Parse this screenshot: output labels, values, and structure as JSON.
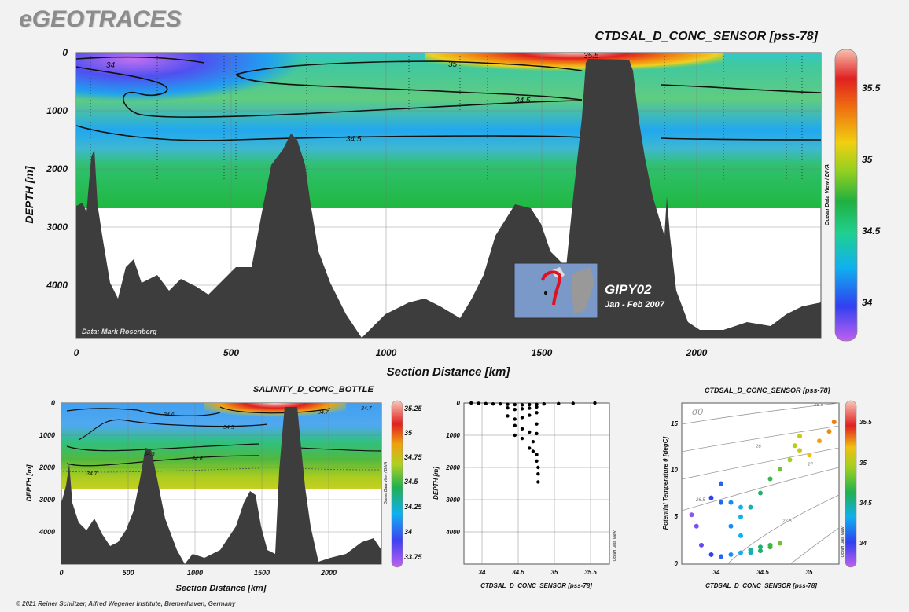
{
  "brand": "eGEOTRACES",
  "copyright": "© 2021 Reiner Schlitzer, Alfred Wegener Institute, Bremerhaven, Germany",
  "colorscale": [
    "#b060e0",
    "#3030e8",
    "#20a0f0",
    "#30d090",
    "#20b040",
    "#a0d020",
    "#f0c010",
    "#f07010",
    "#e02020",
    "#f8c8b8"
  ],
  "main": {
    "title": "CTDSAL_D_CONC_SENSOR [pss-78]",
    "ylabel": "DEPTH [m]",
    "xlabel": "Section Distance [km]",
    "credit": "Data: Mark Rosenberg",
    "odv": "Ocean Data View / DIVA",
    "cruise": "GIPY02",
    "dates": "Jan - Feb 2007",
    "contours": [
      "34",
      "35",
      "35.5",
      "34.5",
      "34.5"
    ]
  },
  "bottle": {
    "title": "SALINITY_D_CONC_BOTTLE",
    "ylabel": "DEPTH [m]",
    "xlabel": "Section Distance [km]",
    "odv": "Ocean Data View / DIVA",
    "contours": [
      "34.6",
      "34.7",
      "34.5",
      "34.6",
      "34.5",
      "34.7",
      "34.7"
    ]
  },
  "profile": {
    "ylabel": "DEPTH [m]",
    "xlabel": "CTDSAL_D_CONC_SENSOR [pss-78]",
    "odv": "Ocean Data View"
  },
  "ts": {
    "title": "CTDSAL_D_CONC_SENSOR [pss-78]",
    "ylabel": "Potential Temperature θ [degC]",
    "xlabel": "CTDSAL_D_CONC_SENSOR [pss-78]",
    "sigma": "σ0",
    "odv": "Ocean Data View",
    "isopycnals": [
      "26",
      "26.5",
      "27",
      "27.5",
      "25.5"
    ]
  },
  "chart_data": [
    {
      "type": "heatmap",
      "title": "CTDSAL_D_CONC_SENSOR [pss-78]",
      "xlabel": "Section Distance [km]",
      "ylabel": "DEPTH [m]",
      "xlim": [
        0,
        2400
      ],
      "ylim": [
        0,
        5000
      ],
      "xticks": [
        0,
        500,
        1000,
        1500,
        2000
      ],
      "yticks": [
        0,
        1000,
        2000,
        3000,
        4000
      ],
      "colorbar": {
        "ticks": [
          34,
          34.5,
          35,
          35.5
        ],
        "range": [
          33.7,
          35.7
        ]
      },
      "bathymetry": {
        "x": [
          0,
          40,
          60,
          80,
          100,
          150,
          200,
          300,
          400,
          500,
          600,
          640,
          680,
          700,
          720,
          760,
          800,
          900,
          950,
          1000,
          1100,
          1200,
          1300,
          1350,
          1400,
          1450,
          1500,
          1550,
          1600,
          1620,
          1650,
          1700,
          1750,
          1800,
          1850,
          1900,
          1950,
          2000,
          2100,
          2200,
          2300,
          2400
        ],
        "y": [
          2600,
          2700,
          1700,
          2800,
          3900,
          4000,
          3500,
          4200,
          3900,
          3800,
          3500,
          2000,
          1500,
          1400,
          1800,
          3000,
          4500,
          4900,
          4600,
          4300,
          4500,
          4600,
          3800,
          3300,
          2800,
          2700,
          3000,
          3800,
          4200,
          1500,
          100,
          100,
          100,
          150,
          1500,
          3000,
          4500,
          4700,
          4600,
          4500,
          4400,
          4600
        ]
      },
      "contour_levels": [
        34,
        34.5,
        35,
        35.5
      ],
      "data_max_depth": 2700
    },
    {
      "type": "heatmap",
      "title": "SALINITY_D_CONC_BOTTLE",
      "xlabel": "Section Distance [km]",
      "ylabel": "DEPTH [m]",
      "xlim": [
        0,
        2400
      ],
      "ylim": [
        0,
        5000
      ],
      "xticks": [
        0,
        500,
        1000,
        1500,
        2000
      ],
      "yticks": [
        0,
        1000,
        2000,
        3000,
        4000
      ],
      "colorbar": {
        "ticks": [
          33.75,
          34,
          34.25,
          34.5,
          34.75,
          35,
          35.25
        ],
        "range": [
          33.7,
          35.3
        ]
      },
      "data_max_depth": 2600
    },
    {
      "type": "scatter",
      "xlabel": "CTDSAL_D_CONC_SENSOR [pss-78]",
      "ylabel": "DEPTH [m]",
      "xlim": [
        33.7,
        35.7
      ],
      "ylim": [
        0,
        5000
      ],
      "xticks": [
        34,
        34.5,
        35,
        35.5
      ],
      "yticks": [
        0,
        1000,
        2000,
        3000,
        4000
      ],
      "x": [
        33.8,
        33.9,
        34.0,
        34.1,
        34.2,
        34.3,
        34.4,
        34.5,
        34.6,
        34.7,
        34.8,
        35.0,
        35.2,
        35.5,
        34.3,
        34.4,
        34.5,
        34.6,
        34.7,
        34.3,
        34.4,
        34.5,
        34.6,
        34.7,
        34.4,
        34.5,
        34.6,
        34.7,
        34.4,
        34.5,
        34.65,
        34.7,
        34.6,
        34.65,
        34.7,
        34.7,
        34.72,
        34.72,
        34.72
      ],
      "y": [
        0,
        10,
        20,
        30,
        30,
        40,
        50,
        60,
        50,
        40,
        30,
        20,
        10,
        0,
        150,
        200,
        180,
        160,
        120,
        400,
        500,
        450,
        380,
        300,
        700,
        800,
        900,
        650,
        1000,
        1100,
        1200,
        950,
        1400,
        1500,
        1600,
        1800,
        2000,
        2200,
        2450
      ]
    },
    {
      "type": "scatter",
      "title": "CTDSAL_D_CONC_SENSOR [pss-78]",
      "xlabel": "CTDSAL_D_CONC_SENSOR [pss-78]",
      "ylabel": "Potential Temperature θ [degC]",
      "xlim": [
        33.7,
        35.3
      ],
      "ylim": [
        0,
        17
      ],
      "xticks": [
        34,
        34.5,
        35
      ],
      "yticks": [
        0,
        5,
        10,
        15
      ],
      "colorbar": {
        "ticks": [
          34,
          34.5,
          35,
          35.5
        ],
        "range": [
          33.7,
          35.7
        ]
      },
      "x": [
        33.8,
        33.85,
        33.9,
        34.0,
        34.1,
        34.2,
        34.3,
        34.4,
        34.5,
        34.6,
        34.7,
        34.6,
        34.5,
        34.4,
        34.3,
        34.2,
        34.1,
        34.0,
        34.3,
        34.4,
        34.5,
        34.6,
        34.7,
        34.8,
        34.9,
        35.0,
        35.1,
        35.2,
        35.25,
        34.1,
        34.2,
        34.3,
        34.9,
        34.85
      ],
      "y": [
        5.2,
        4.0,
        2.0,
        1.0,
        0.8,
        1.0,
        1.2,
        1.5,
        1.8,
        2.0,
        2.2,
        1.8,
        1.4,
        1.2,
        3.0,
        4.0,
        6.5,
        7.0,
        5.0,
        6.0,
        7.5,
        9.0,
        10.0,
        11.0,
        12.0,
        11.5,
        13.0,
        14.0,
        15.0,
        8.5,
        6.5,
        6.0,
        13.5,
        12.5
      ],
      "isopycnals": [
        25.5,
        26,
        26.5,
        27,
        27.5
      ]
    }
  ]
}
